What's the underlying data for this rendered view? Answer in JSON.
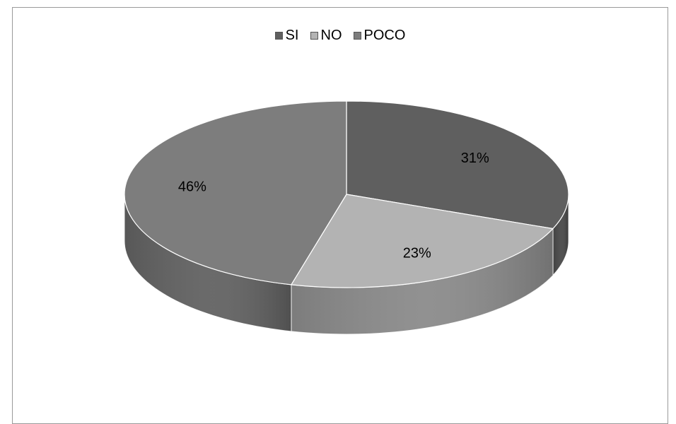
{
  "chart_data": {
    "type": "pie",
    "style": "3d",
    "title": "",
    "legend_position": "top",
    "categories": [
      "SI",
      "NO",
      "POCO"
    ],
    "values": [
      31,
      23,
      46
    ],
    "labels": [
      "31%",
      "23%",
      "46%"
    ],
    "colors": {
      "SI": "#5f5f5f",
      "NO": "#b3b3b3",
      "POCO": "#7d7d7d"
    },
    "side_colors": {
      "SI": "#474747",
      "NO": "#8a8a8a",
      "POCO": "#616161"
    }
  }
}
